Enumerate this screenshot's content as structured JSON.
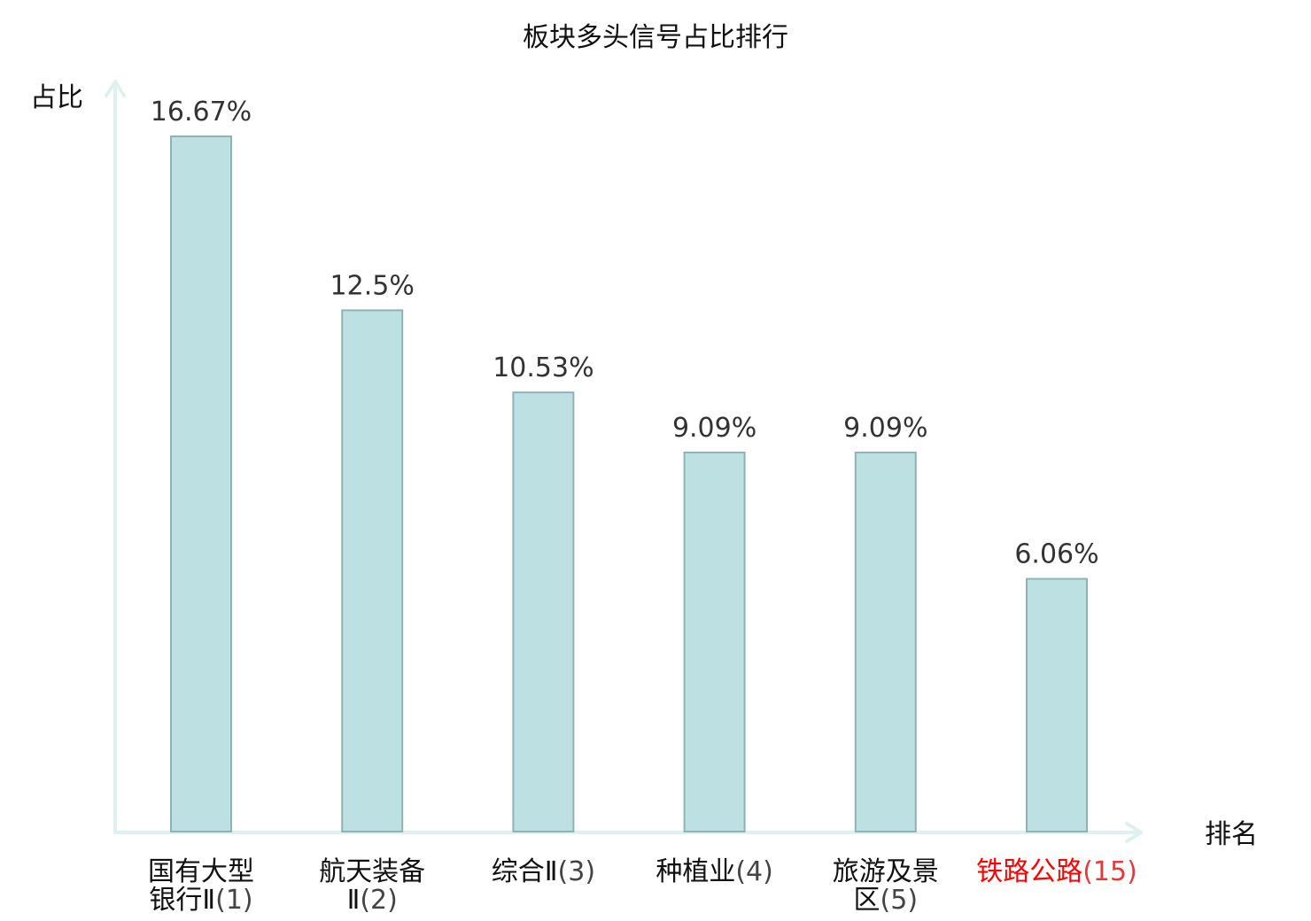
{
  "chart_data": {
    "type": "bar",
    "title": "板块多头信号占比排行",
    "ylabel": "占比",
    "xlabel": "排名",
    "categories": [
      [
        "国有大型",
        "银行Ⅱ(1)"
      ],
      [
        "航天装备",
        "Ⅱ(2)"
      ],
      [
        "综合Ⅱ(3)"
      ],
      [
        "种植业(4)"
      ],
      [
        "旅游及景",
        "区(5)"
      ],
      [
        "铁路公路(15)"
      ]
    ],
    "values": [
      16.67,
      12.5,
      10.53,
      9.09,
      9.09,
      6.06
    ],
    "value_labels": [
      "16.67%",
      "12.5%",
      "10.53%",
      "9.09%",
      "9.09%",
      "6.06%"
    ],
    "ylim": [
      0,
      16.67
    ],
    "highlight_index": 5,
    "colors": {
      "bar_fill": "#bde0e3",
      "bar_stroke": "#8fb2b4",
      "axis": "#dff0ee",
      "category_text": "#111111",
      "highlight_name": "#ff0000",
      "highlight_rank": "#e03c3c"
    },
    "grid": false
  }
}
